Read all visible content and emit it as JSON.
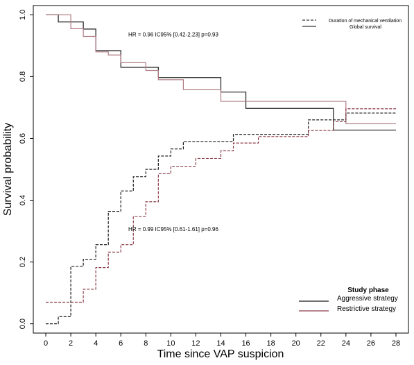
{
  "chart_data": {
    "type": "line",
    "step": true,
    "xlabel": "Time since VAP suspicion",
    "ylabel": "Survival probability",
    "xlim": [
      -1,
      29
    ],
    "ylim": [
      -0.03,
      1.03
    ],
    "xticks": [
      0,
      2,
      4,
      6,
      8,
      10,
      12,
      14,
      16,
      18,
      20,
      22,
      24,
      26,
      28
    ],
    "yticks": [
      0.0,
      0.2,
      0.4,
      0.6,
      0.8,
      1.0
    ],
    "ytick_labels": [
      "0.0",
      "0.2",
      "0.4",
      "0.6",
      "0.8",
      "1.0"
    ],
    "annotations": [
      {
        "text": "HR = 0.96 IC95% [0.42-2.23]    p=0.93",
        "x": 6.6,
        "y": 0.93
      },
      {
        "text": "HR = 0.99 IC95% [0.61-1.61] p=0.96",
        "x": 6.6,
        "y": 0.3
      }
    ],
    "linetype_legend": {
      "position": "top-right",
      "entries": [
        {
          "label": "Duration of mechanical ventilation",
          "style": "dashed"
        },
        {
          "label": "Global survival",
          "style": "solid"
        }
      ]
    },
    "group_legend": {
      "position": "bottom-right",
      "title": "Study phase",
      "entries": [
        {
          "label": "Aggressive strategy",
          "color": "#1a1a1a"
        },
        {
          "label": "Restrictive strategy",
          "color": "#8b3a47"
        }
      ]
    },
    "series": [
      {
        "group": "Aggressive strategy",
        "curve": "Global survival",
        "style": "solid",
        "color": "#1a1a1a",
        "x": [
          0,
          1,
          3,
          4,
          6,
          9,
          14,
          16,
          23,
          28
        ],
        "y": [
          1.0,
          0.977,
          0.954,
          0.884,
          0.83,
          0.797,
          0.75,
          0.697,
          0.627,
          0.627
        ]
      },
      {
        "group": "Restrictive strategy",
        "curve": "Global survival",
        "style": "solid",
        "color": "#b07a84",
        "x": [
          0,
          2,
          3,
          4,
          5,
          6,
          8,
          9,
          11,
          14,
          24,
          28
        ],
        "y": [
          1.0,
          0.955,
          0.93,
          0.88,
          0.87,
          0.845,
          0.82,
          0.79,
          0.758,
          0.72,
          0.648,
          0.648
        ]
      },
      {
        "group": "Aggressive strategy",
        "curve": "Duration of mechanical ventilation",
        "style": "dashed",
        "color": "#1a1a1a",
        "x": [
          0,
          1,
          2,
          3,
          4,
          5,
          6,
          7,
          8,
          9,
          10,
          11,
          13,
          15,
          18,
          21,
          23,
          24,
          28
        ],
        "y": [
          0.0,
          0.023,
          0.186,
          0.209,
          0.256,
          0.364,
          0.43,
          0.476,
          0.5,
          0.543,
          0.566,
          0.59,
          0.59,
          0.613,
          0.613,
          0.66,
          0.66,
          0.682,
          0.682
        ]
      },
      {
        "group": "Restrictive strategy",
        "curve": "Duration of mechanical ventilation",
        "style": "dashed",
        "color": "#8b3a47",
        "x": [
          0,
          2,
          3,
          4,
          5,
          6,
          7,
          8,
          9,
          10,
          12,
          14,
          15,
          17,
          19,
          21,
          23,
          24,
          28
        ],
        "y": [
          0.07,
          0.07,
          0.112,
          0.182,
          0.232,
          0.256,
          0.348,
          0.395,
          0.486,
          0.51,
          0.535,
          0.56,
          0.585,
          0.606,
          0.606,
          0.626,
          0.654,
          0.696,
          0.696
        ]
      }
    ]
  }
}
